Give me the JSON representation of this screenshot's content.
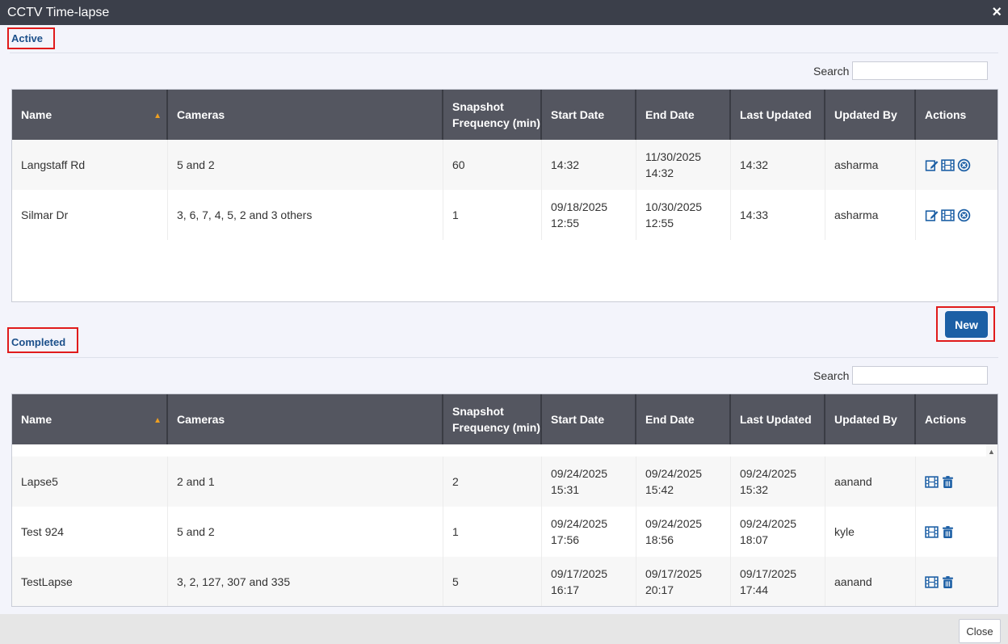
{
  "window": {
    "title": "CCTV Time-lapse",
    "close_icon": "×"
  },
  "active": {
    "heading": "Active",
    "search_label": "Search",
    "columns": [
      "Name",
      "Cameras",
      "Snapshot Frequency (min)",
      "Start Date",
      "End Date",
      "Last Updated",
      "Updated By",
      "Actions"
    ],
    "rows": [
      {
        "name": "Langstaff Rd",
        "cameras": "5 and 2",
        "frequency": "60",
        "start": "14:32",
        "end": "11/30/2025 14:32",
        "last_updated": "14:32",
        "updated_by": "asharma"
      },
      {
        "name": "Silmar Dr",
        "cameras": "3, 6, 7, 4, 5, 2 and 3 others",
        "frequency": "1",
        "start": "09/18/2025 12:55",
        "end": "10/30/2025 12:55",
        "last_updated": "14:33",
        "updated_by": "asharma"
      }
    ],
    "row_actions": [
      "edit-icon",
      "film-icon",
      "stop-icon"
    ]
  },
  "new_button": "New",
  "completed": {
    "heading": "Completed",
    "search_label": "Search",
    "columns": [
      "Name",
      "Cameras",
      "Snapshot Frequency (min)",
      "Start Date",
      "End Date",
      "Last Updated",
      "Updated By",
      "Actions"
    ],
    "rows": [
      {
        "name": "Lapse5",
        "cameras": "2 and 1",
        "frequency": "2",
        "start": "09/24/2025 15:31",
        "end": "09/24/2025 15:42",
        "last_updated": "09/24/2025 15:32",
        "updated_by": "aanand"
      },
      {
        "name": "Test 924",
        "cameras": "5 and 2",
        "frequency": "1",
        "start": "09/24/2025 17:56",
        "end": "09/24/2025 18:56",
        "last_updated": "09/24/2025 18:07",
        "updated_by": "kyle"
      },
      {
        "name": "TestLapse",
        "cameras": "3, 2, 127, 307 and 335",
        "frequency": "5",
        "start": "09/17/2025 16:17",
        "end": "09/17/2025 20:17",
        "last_updated": "09/17/2025 17:44",
        "updated_by": "aanand"
      }
    ],
    "row_actions": [
      "film-icon",
      "trash-icon"
    ]
  },
  "footer": {
    "close_label": "Close"
  },
  "colors": {
    "header_bg": "#545660",
    "accent": "#1c5fa5",
    "highlight_border": "#e01b1b",
    "sort_arrow": "#f0a020"
  }
}
